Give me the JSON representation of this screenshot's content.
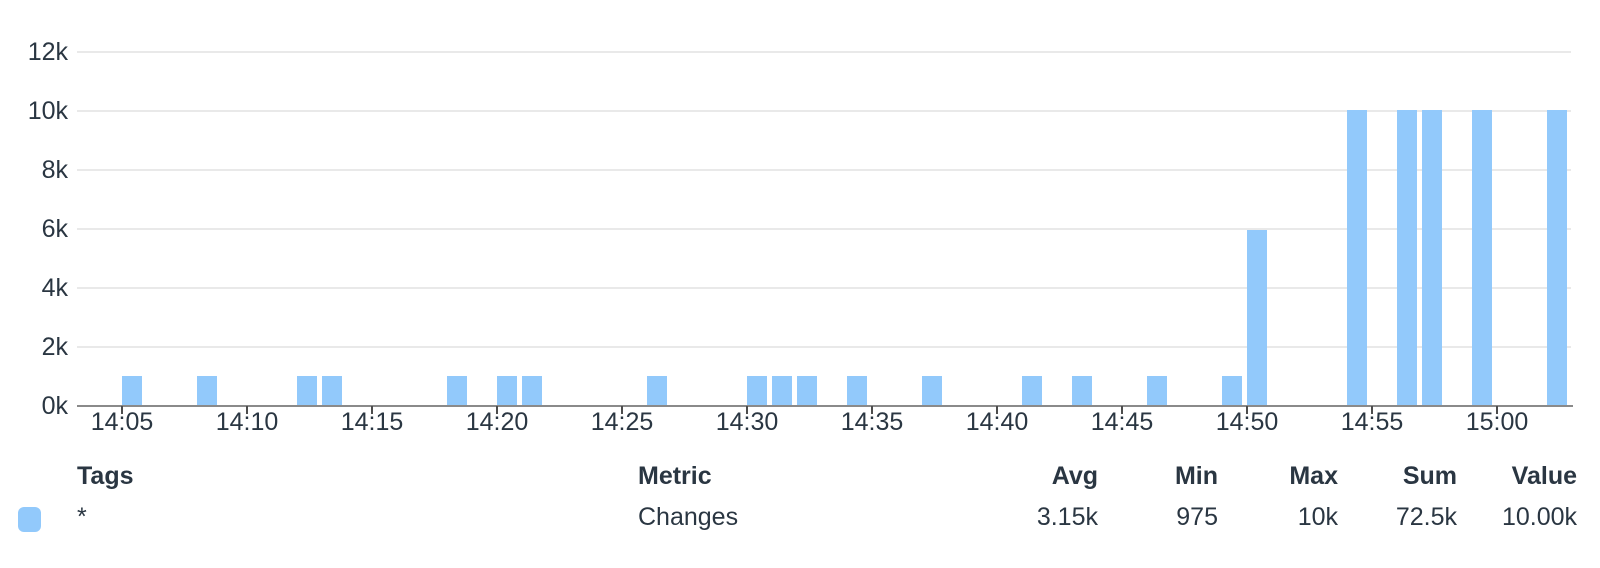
{
  "chart_data": {
    "type": "bar",
    "title": "",
    "xlabel": "",
    "ylabel": "",
    "grid": true,
    "bar_color": "#92c9fb",
    "x_range": [
      "14:03",
      "15:03"
    ],
    "ylim": [
      0,
      12983
    ],
    "y_ticks": [
      {
        "label": "0k",
        "value": 0
      },
      {
        "label": "2k",
        "value": 2000
      },
      {
        "label": "4k",
        "value": 4000
      },
      {
        "label": "6k",
        "value": 6000
      },
      {
        "label": "8k",
        "value": 8000
      },
      {
        "label": "10k",
        "value": 10000
      },
      {
        "label": "12k",
        "value": 12000
      }
    ],
    "x_ticks": [
      "14:05",
      "14:10",
      "14:15",
      "14:20",
      "14:25",
      "14:30",
      "14:35",
      "14:40",
      "14:45",
      "14:50",
      "14:55",
      "15:00"
    ],
    "series": [
      {
        "name": "Changes",
        "color": "#92c9fb",
        "points": [
          {
            "t": "14:05",
            "v": 975
          },
          {
            "t": "14:08",
            "v": 975
          },
          {
            "t": "14:12",
            "v": 975
          },
          {
            "t": "14:13",
            "v": 975
          },
          {
            "t": "14:18",
            "v": 975
          },
          {
            "t": "14:20",
            "v": 975
          },
          {
            "t": "14:21",
            "v": 975
          },
          {
            "t": "14:26",
            "v": 975
          },
          {
            "t": "14:30",
            "v": 975
          },
          {
            "t": "14:31",
            "v": 975
          },
          {
            "t": "14:32",
            "v": 975
          },
          {
            "t": "14:34",
            "v": 975
          },
          {
            "t": "14:37",
            "v": 975
          },
          {
            "t": "14:41",
            "v": 975
          },
          {
            "t": "14:43",
            "v": 975
          },
          {
            "t": "14:46",
            "v": 975
          },
          {
            "t": "14:49",
            "v": 975
          },
          {
            "t": "14:50",
            "v": 5925
          },
          {
            "t": "14:54",
            "v": 10000
          },
          {
            "t": "14:56",
            "v": 10000
          },
          {
            "t": "14:57",
            "v": 10000
          },
          {
            "t": "14:59",
            "v": 10000
          },
          {
            "t": "15:02",
            "v": 10000
          }
        ]
      }
    ]
  },
  "legend": {
    "headers": {
      "tags": "Tags",
      "metric": "Metric",
      "avg": "Avg",
      "min": "Min",
      "max": "Max",
      "sum": "Sum",
      "value": "Value"
    },
    "rows": [
      {
        "color": "#92c9fb",
        "tag": "*",
        "metric": "Changes",
        "avg": "3.15k",
        "min": "975",
        "max": "10k",
        "sum": "72.5k",
        "value": "10.00k"
      }
    ]
  },
  "colors": {
    "bar": "#92c9fb",
    "grid": "#e9e9e9",
    "axis": "#8a8a8a",
    "tick": "#4d4d4d",
    "text": "#2a3642"
  }
}
